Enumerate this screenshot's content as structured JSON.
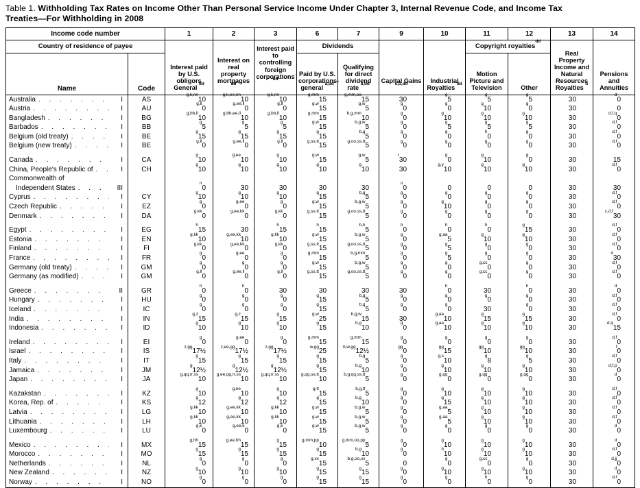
{
  "title": {
    "prefix": "Table 1.",
    "line1": "Withholding Tax Rates on Income Other Than Personal Service Income Under Chapter 3, Internal Revenue Code, and Income Tax",
    "line2": "Treaties—For Withholding in 2008"
  },
  "header": {
    "income_code_label": "Income code number",
    "codes": [
      "1",
      "2",
      "3",
      "6",
      "7",
      "9",
      "10",
      "11",
      "12",
      "13",
      "14"
    ],
    "country_label": "Country of residence of payee",
    "name_label": "Name",
    "code_label": "Code",
    "col1": {
      "label": "Interest paid by U.S. obligors General",
      "sup": "dd"
    },
    "col2": {
      "label": "Interest on real property mortgages",
      "sup": "dd"
    },
    "col3": {
      "label": "Interest paid to controlling foreign corporations",
      "sup": "dd"
    },
    "dividends_label": "Dividends",
    "col6": {
      "label": "Paid by U.S. corporations-general",
      "sup": "a,dd"
    },
    "col7": {
      "label": "Qualifying for direct dividend rate",
      "sup": "a,dd"
    },
    "col9": {
      "label": "Capital Gains",
      "sup": "e,u,dd"
    },
    "col10": {
      "label": "Industrial Royalties",
      "sup": "dd"
    },
    "copyright": {
      "label": "Copyright royalties",
      "sup": "dd"
    },
    "col11": {
      "label": "Motion Picture and Television",
      "sup": ""
    },
    "col12": {
      "label": "Other",
      "sup": ""
    },
    "col13": {
      "label": "Real Property Income and Natural Resources Royalties",
      "sup": "u"
    },
    "col14": {
      "label": "Pensions and Annuities",
      "sup": ""
    }
  },
  "rows": [
    {
      "name": "Australia",
      "cls": "I",
      "code": "AS",
      "rates": [
        "g,k,nn|10",
        "g,k,ee,nn|10",
        "g,k,nn|10",
        "g,mm|15",
        "g,mm,oo|15",
        "|30",
        "g|5",
        "g|5",
        "g|5",
        "|30",
        "d|0"
      ]
    },
    {
      "name": "Austria",
      "cls": "I",
      "code": "AU",
      "rates": [
        "g,ll|0",
        "g,ee,ll|0",
        "g,ll|0",
        "g,w|15",
        "g,w|5",
        "g|0",
        "g|0",
        "g|10",
        "g|0",
        "|30",
        "|0"
      ]
    },
    {
      "name": "Bangladesh",
      "cls": "I",
      "code": "BG",
      "rates": [
        "g,bb,ll|10",
        "g,bb,ee,ll|10",
        "g,bb,ll|10",
        "g,mm|15",
        "b,g,mm|10",
        "g|0",
        "g|10",
        "g|10",
        "g|10",
        "|30",
        "d,f,q|0"
      ]
    },
    {
      "name": "Barbados",
      "cls": "I",
      "code": "BB",
      "rates": [
        "g|5",
        "g|5",
        "g|5",
        "g,w|15",
        "b,g,w|5",
        "g|0",
        "g|5",
        "g|5",
        "g|5",
        "|30",
        "d,f|0"
      ]
    },
    {
      "name": "Belgium (old treaty)",
      "cls": "I",
      "code": "BE",
      "rates": [
        "g|15",
        "g|15",
        "g|15",
        "g|15",
        "b,g|5",
        "g|0",
        "g|0",
        "h|0",
        "g|0",
        "|30",
        "d,f|0"
      ]
    },
    {
      "name": "Belgium (new treaty)",
      "cls": "I",
      "code": "BE",
      "rates": [
        "g,ll|0",
        "g,ee,ll|0",
        "g,ll|0",
        "g,ss,tt|15",
        "g,oo,ss,tt|5",
        "g|0",
        "g|0",
        "g|0",
        "g|0",
        "|30",
        "d,f|0"
      ]
    },
    {
      "name": "Canada",
      "cls": "I",
      "code": "CA",
      "group_start": true,
      "rates": [
        "g|10",
        "g,ee|10",
        "g|10",
        "g,w|15",
        "g,w|5",
        "r|30",
        "g|0",
        "g|10",
        "g|0",
        "|30",
        "|15"
      ]
    },
    {
      "name": "China, People's Republic of",
      "cls": "I",
      "code": "CH",
      "rates": [
        "g|10",
        "g|10",
        "g|10",
        "g|10",
        "g|10",
        "|30",
        "g,y|10",
        "g|10",
        "g|10",
        "|30",
        "d,f|0"
      ]
    },
    {
      "name": "Commonwealth of",
      "name2": "Independent States",
      "cls": "III",
      "code": "",
      "rates": [
        "n|0",
        "|30",
        "|30",
        "|30",
        "|30",
        "o|0",
        "|0",
        "|0",
        "|0",
        "|30",
        "|30"
      ]
    },
    {
      "name": "Cyprus",
      "cls": "I",
      "code": "CY",
      "rates": [
        "g|10",
        "g|10",
        "g|10",
        "g|15",
        "b,g|5",
        "g|0",
        "g|0",
        "g|0",
        "g|0",
        "|30",
        "d,f|0"
      ]
    },
    {
      "name": "Czech Republic",
      "cls": "I",
      "code": "EZ",
      "rates": [
        "g|0",
        "g,ee|0",
        "g|0",
        "g,w|15",
        "b,g,w|5",
        "g|0",
        "g|10",
        "g|0",
        "g|0",
        "|30",
        "d,f|0"
      ]
    },
    {
      "name": "Denmark",
      "cls": "I",
      "code": "DA",
      "rates": [
        "g,kk|0",
        "g,ee,kk|0",
        "g,kk|0",
        "g,ss,tt|15",
        "g,oo,ss,tt|5",
        "g|0",
        "g|0",
        "g|0",
        "g|0",
        "|30",
        "c,d,f|30"
      ]
    },
    {
      "name": "Egypt",
      "cls": "I",
      "code": "EG",
      "group_start": true,
      "rates": [
        "h|15",
        "|30",
        "h|15",
        "h|15",
        "b,h|5",
        "h|0",
        "h|0",
        "h|0",
        "g|15",
        "|30",
        "d,f|0"
      ]
    },
    {
      "name": "Estonia",
      "cls": "I",
      "code": "EN",
      "rates": [
        "g,kk|10",
        "g,ee,kk|10",
        "g,kk|10",
        "g,w|15",
        "b,g,w|5",
        "g|0",
        "g,aa|5",
        "g|10",
        "g|10",
        "|30",
        "d,f|0"
      ]
    },
    {
      "name": "Finland",
      "cls": "I",
      "code": "FI",
      "rates": [
        "g,kk|0",
        "g,ee,kk|0",
        "g,kk|0",
        "g,ss,tt|15",
        "g,oo,ss,tt|5",
        "g|0",
        "g|5",
        "g|0",
        "g|0",
        "|30",
        "d,f|0"
      ]
    },
    {
      "name": "France",
      "cls": "I",
      "code": "FR",
      "rates": [
        "g|0",
        "g,ee|0",
        "g|0",
        "g,mm|15",
        "b,g,mm|5",
        "g|0",
        "g|5",
        "g|0",
        "g|0",
        "|30",
        "d|30"
      ]
    },
    {
      "name": "Germany (old treaty)",
      "cls": "I",
      "code": "GM",
      "rates": [
        "g|0",
        "g|0",
        "g|0",
        "g,w|15",
        "b,g,w|5",
        "g|0",
        "g|0",
        "g,cc|0",
        "g|0",
        "|30",
        "d,f|0"
      ]
    },
    {
      "name": "Germany (as modified)",
      "cls": "I",
      "code": "GM",
      "rates": [
        "g,ll|0",
        "g,ee,ll|0",
        "g,ll|0",
        "g,ss,tt|15",
        "g,oo,ss,tt|5",
        "g|0",
        "g|0",
        "g,cc|0",
        "g|0",
        "|30",
        "d,f|0"
      ]
    },
    {
      "name": "Greece",
      "cls": "II",
      "code": "GR",
      "group_start": true,
      "rates": [
        "h|0",
        "h|0",
        "|30",
        "|30",
        "|30",
        "|30",
        "h|0",
        "|30",
        "h|0",
        "|30",
        "d|0"
      ]
    },
    {
      "name": "Hungary",
      "cls": "I",
      "code": "HU",
      "rates": [
        "g|0",
        "g|0",
        "g|0",
        "g|15",
        "b,g|5",
        "g|0",
        "g|0",
        "g|0",
        "g|0",
        "|30",
        "d,f|0"
      ]
    },
    {
      "name": "Iceland",
      "cls": "I",
      "code": "IC",
      "rates": [
        "g|0",
        "g|0",
        "g|0",
        "g|15",
        "b,g|5",
        "g|0",
        "g|0",
        "|30",
        "g|0",
        "|30",
        "d,f|0"
      ]
    },
    {
      "name": "India",
      "cls": "I",
      "code": "IN",
      "rates": [
        "g,z|15",
        "g,z|15",
        "g|15",
        "g,w|25",
        "b,g,w|15",
        "|30",
        "g,aa|10",
        "g|15",
        "g|15",
        "|30",
        "d,f|0"
      ]
    },
    {
      "name": "Indonesia",
      "cls": "I",
      "code": "ID",
      "rates": [
        "g|10",
        "g|10",
        "g|10",
        "g|15",
        "b,g|10",
        "g|0",
        "g,aa|10",
        "g|10",
        "g|10",
        "|30",
        "d,q|15"
      ]
    },
    {
      "name": "Ireland",
      "cls": "I",
      "code": "EI",
      "group_start": true,
      "rates": [
        "g|0",
        "g,ee|0",
        "g|0",
        "g,mm|15",
        "g,mm|15",
        "g|0",
        "g|0",
        "g|0",
        "g|0",
        "|30",
        "d,f|0"
      ]
    },
    {
      "name": "Israel",
      "cls": "I",
      "code": "IS",
      "rates": [
        "z,gg|17½",
        "z,ee,gg|17½",
        "z,gg|17½",
        "w,gg|25",
        "b,w,gg|12½",
        "gg|0",
        "gg|15",
        "gg|10",
        "gg|10",
        "|30",
        "f|0"
      ]
    },
    {
      "name": "Italy",
      "cls": "I",
      "code": "IT",
      "rates": [
        "g|15",
        "g|15",
        "g|15",
        "g|15",
        "b,g|5",
        "g|0",
        "g,s|10",
        "g|8",
        "g|5",
        "|30",
        "d,f|0"
      ]
    },
    {
      "name": "Jamaica",
      "cls": "I",
      "code": "JM",
      "rates": [
        "g|12½",
        "g|12½",
        "g|12½",
        "g|15",
        "b,g|10",
        "g|0",
        "g|10",
        "g|10",
        "g|10",
        "|30",
        "d,f,p|0"
      ]
    },
    {
      "name": "Japan",
      "cls": "I",
      "code": "JA",
      "rates": [
        "g,qq,rr,ss|10",
        "g,ee,qq,rr,ss|10",
        "g,qq,rr,ss|10",
        "g,qq,ss,tt|10",
        "b,g,qq,ss,tt|5",
        "g|0",
        "g,qq|0",
        "g,qq|0",
        "g,qq|0",
        "|30",
        "d|0"
      ]
    },
    {
      "name": "Kazakstan",
      "cls": "I",
      "code": "KZ",
      "group_start": true,
      "rates": [
        "g|10",
        "g,ee|10",
        "g|10",
        "g,tt|15",
        "b,g,tt|5",
        "g|0",
        "g|10",
        "g|10",
        "g|10",
        "|30",
        "d,f|0"
      ]
    },
    {
      "name": "Korea, Rep. of",
      "cls": "I",
      "code": "KS",
      "rates": [
        "g|12",
        "g|12",
        "g|12",
        "g|15",
        "b,g|10",
        "g|0",
        "g|15",
        "g|10",
        "g|10",
        "|30",
        "d,f|0"
      ]
    },
    {
      "name": "Latvia",
      "cls": "I",
      "code": "LG",
      "rates": [
        "g,kk|10",
        "g,ee,kk|10",
        "g,kk|10",
        "g,w|15",
        "b,g,w|5",
        "g|0",
        "g,aa|5",
        "g|10",
        "g|10",
        "|30",
        "d,f|0"
      ]
    },
    {
      "name": "Lithuania",
      "cls": "I",
      "code": "LH",
      "rates": [
        "g,kk|10",
        "g,ee,kk|10",
        "g,kk|10",
        "g,w|15",
        "b,g,w|5",
        "g|0",
        "g,aa|5",
        "g|10",
        "g|10",
        "|30",
        "d,f|0"
      ]
    },
    {
      "name": "Luxembourg",
      "cls": "I",
      "code": "LU",
      "rates": [
        "g,k|0",
        "g,ee,k|0",
        "g,k|0",
        "g,w|15",
        "b,g,w|5",
        "g|0",
        "g|0",
        "g|0",
        "g|0",
        "|30",
        "d|0"
      ]
    },
    {
      "name": "Mexico",
      "cls": "I",
      "code": "MX",
      "group_start": true,
      "rates": [
        "g,hh|15",
        "g,ee,hh|15",
        "g|15",
        "g,mm,pp|10",
        "g,mm,oo,pp|5",
        "g|0",
        "g|10",
        "g|10",
        "g|10",
        "|30",
        "d|0"
      ]
    },
    {
      "name": "Morocco",
      "cls": "I",
      "code": "MO",
      "rates": [
        "g|15",
        "g|15",
        "g|15",
        "g|15",
        "b,g|10",
        "g|0",
        "h|10",
        "g|10",
        "g|10",
        "|30",
        "d,f|0"
      ]
    },
    {
      "name": "Netherlands",
      "cls": "I",
      "code": "NL",
      "rates": [
        "g|0",
        "g|0",
        "g|0",
        "g,xx|15",
        "b,g,oo,xx|5",
        "|0",
        "g|0",
        "g,cc|0",
        "g|0",
        "|30",
        "d,jj|0"
      ]
    },
    {
      "name": "New Zealand",
      "cls": "I",
      "code": "NZ",
      "rates": [
        "g|10",
        "g|10",
        "g|10",
        "g|15",
        "g|15",
        "g|0",
        "g|10",
        "g|10",
        "g|10",
        "|30",
        "d|0"
      ]
    },
    {
      "name": "Norway",
      "cls": "I",
      "code": "NO",
      "rates": [
        "g|0",
        "g|0",
        "g|0",
        "g|15",
        "g|15",
        "g|0",
        "g|0",
        "h|0",
        "g|0",
        "|30",
        "d,f|0"
      ]
    }
  ]
}
